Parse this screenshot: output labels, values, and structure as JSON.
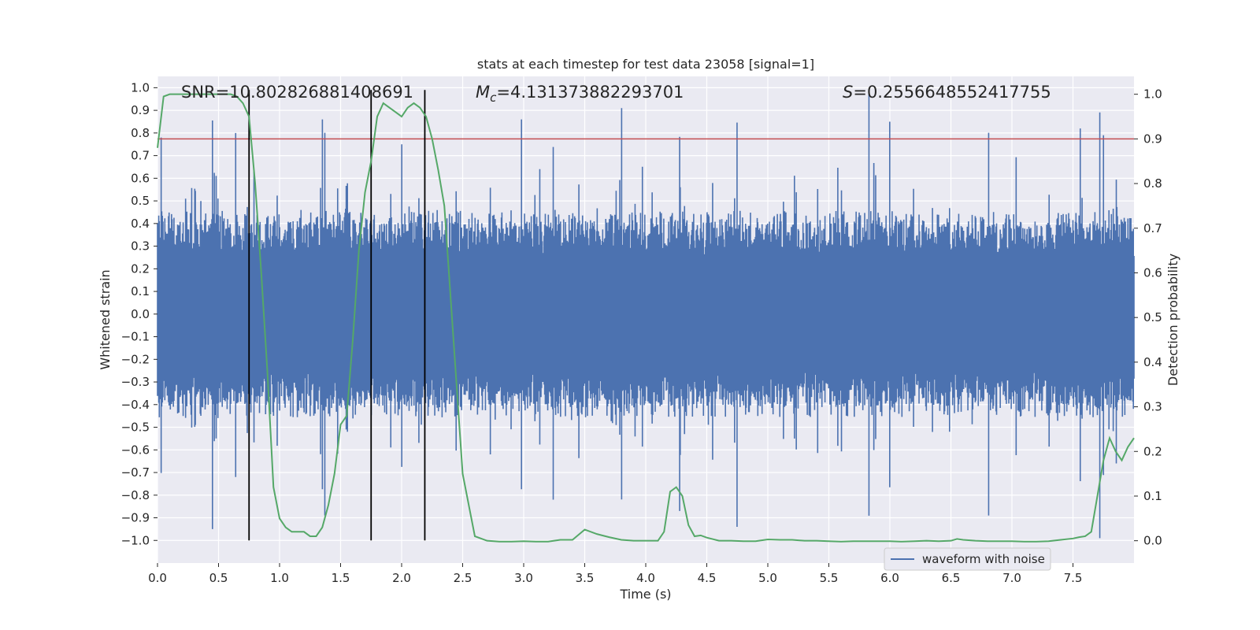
{
  "chart_data": {
    "type": "line",
    "title": "stats at each timestep for test data 23058 [signal=1]",
    "xlabel": "Time (s)",
    "ylabel_left": "Whitened strain",
    "ylabel_right": "Detection probability",
    "xlim": [
      0,
      8
    ],
    "ylim_left": [
      -1.1,
      1.05
    ],
    "ylim_right": [
      -0.05,
      1.04
    ],
    "x_ticks": [
      0.0,
      0.5,
      1.0,
      1.5,
      2.0,
      2.5,
      3.0,
      3.5,
      4.0,
      4.5,
      5.0,
      5.5,
      6.0,
      6.5,
      7.0,
      7.5
    ],
    "x_tick_labels": [
      "0.0",
      "0.5",
      "1.0",
      "1.5",
      "2.0",
      "2.5",
      "3.0",
      "3.5",
      "4.0",
      "4.5",
      "5.0",
      "5.5",
      "6.0",
      "6.5",
      "7.0",
      "7.5"
    ],
    "y_left_ticks": [
      -1.0,
      -0.9,
      -0.8,
      -0.7,
      -0.6,
      -0.5,
      -0.4,
      -0.3,
      -0.2,
      -0.1,
      0.0,
      0.1,
      0.2,
      0.3,
      0.4,
      0.5,
      0.6,
      0.7,
      0.8,
      0.9,
      1.0
    ],
    "y_left_tick_labels": [
      "−1.0",
      "−0.9",
      "−0.8",
      "−0.7",
      "−0.6",
      "−0.5",
      "−0.4",
      "−0.3",
      "−0.2",
      "−0.1",
      "0.0",
      "0.1",
      "0.2",
      "0.3",
      "0.4",
      "0.5",
      "0.6",
      "0.7",
      "0.8",
      "0.9",
      "1.0"
    ],
    "y_right_ticks": [
      0.0,
      0.1,
      0.2,
      0.3,
      0.4,
      0.5,
      0.6,
      0.7,
      0.8,
      0.9,
      1.0
    ],
    "y_right_tick_labels": [
      "0.0",
      "0.1",
      "0.2",
      "0.3",
      "0.4",
      "0.5",
      "0.6",
      "0.7",
      "0.8",
      "0.9",
      "1.0"
    ],
    "stats": {
      "snr_label": "SNR=10.802826881408691",
      "mc_symbol": "M",
      "mc_sub": "c",
      "mc_value": "=4.131373882293701",
      "s_symbol": "S",
      "s_value": "=0.2556648552417755"
    },
    "threshold": {
      "axis": "right",
      "value": 0.9,
      "color": "#c44e52"
    },
    "vertical_lines": [
      0.75,
      1.75,
      2.19
    ],
    "legend": {
      "label": "waveform with noise",
      "position": "lower-right"
    },
    "waveform": {
      "name": "waveform with noise",
      "color": "#4c72b0",
      "t_start": 0,
      "t_end": 8,
      "sample_count": 1600,
      "typical_envelope": 0.38,
      "peaks": [
        {
          "t": 0.03,
          "v": 0.78
        },
        {
          "t": 0.45,
          "v": -0.95
        },
        {
          "t": 0.64,
          "v": 0.8
        },
        {
          "t": 0.79,
          "v": 0.63
        },
        {
          "t": 1.35,
          "v": 0.86
        },
        {
          "t": 1.37,
          "v": -0.89
        },
        {
          "t": 2.0,
          "v": 0.75
        },
        {
          "t": 2.98,
          "v": 0.86
        },
        {
          "t": 3.24,
          "v": -0.82
        },
        {
          "t": 3.8,
          "v": 0.91
        },
        {
          "t": 4.75,
          "v": -0.94
        },
        {
          "t": 4.28,
          "v": -0.87
        },
        {
          "t": 5.83,
          "v": 0.99
        },
        {
          "t": 6.0,
          "v": 0.85
        },
        {
          "t": 6.81,
          "v": -0.89
        },
        {
          "t": 7.56,
          "v": 0.82
        },
        {
          "t": 7.72,
          "v": -0.99
        },
        {
          "t": 7.75,
          "v": 0.79
        }
      ]
    },
    "probability": {
      "name": "detection probability",
      "color": "#55a868",
      "x": [
        0.0,
        0.05,
        0.1,
        0.2,
        0.3,
        0.4,
        0.5,
        0.6,
        0.65,
        0.7,
        0.75,
        0.8,
        0.85,
        0.9,
        0.95,
        1.0,
        1.05,
        1.1,
        1.2,
        1.25,
        1.3,
        1.35,
        1.4,
        1.45,
        1.5,
        1.55,
        1.6,
        1.65,
        1.7,
        1.75,
        1.8,
        1.85,
        1.9,
        1.95,
        2.0,
        2.05,
        2.1,
        2.15,
        2.2,
        2.25,
        2.3,
        2.35,
        2.4,
        2.45,
        2.5,
        2.55,
        2.6,
        2.7,
        2.8,
        2.9,
        3.0,
        3.1,
        3.2,
        3.3,
        3.4,
        3.5,
        3.6,
        3.7,
        3.8,
        3.9,
        4.0,
        4.1,
        4.15,
        4.2,
        4.25,
        4.3,
        4.35,
        4.4,
        4.45,
        4.5,
        4.6,
        4.7,
        4.8,
        4.9,
        5.0,
        5.1,
        5.2,
        5.3,
        5.4,
        5.5,
        5.6,
        5.7,
        5.8,
        5.9,
        6.0,
        6.1,
        6.2,
        6.3,
        6.4,
        6.5,
        6.55,
        6.6,
        6.7,
        6.8,
        6.9,
        7.0,
        7.1,
        7.2,
        7.3,
        7.4,
        7.5,
        7.55,
        7.6,
        7.65,
        7.7,
        7.75,
        7.8,
        7.85,
        7.9,
        7.95,
        8.0
      ],
      "y": [
        0.88,
        0.995,
        1.0,
        1.0,
        1.0,
        1.0,
        1.0,
        1.0,
        0.995,
        0.98,
        0.95,
        0.8,
        0.6,
        0.38,
        0.12,
        0.05,
        0.03,
        0.02,
        0.02,
        0.01,
        0.01,
        0.03,
        0.08,
        0.15,
        0.26,
        0.28,
        0.45,
        0.65,
        0.78,
        0.85,
        0.95,
        0.98,
        0.97,
        0.96,
        0.95,
        0.97,
        0.98,
        0.97,
        0.95,
        0.9,
        0.83,
        0.75,
        0.55,
        0.35,
        0.15,
        0.08,
        0.01,
        0.0,
        -0.002,
        -0.002,
        -0.001,
        -0.002,
        -0.002,
        0.002,
        0.002,
        0.025,
        0.015,
        0.008,
        0.002,
        0.0,
        0.0,
        0.0,
        0.02,
        0.11,
        0.12,
        0.1,
        0.035,
        0.01,
        0.012,
        0.007,
        0.0,
        0.0,
        -0.001,
        -0.001,
        0.003,
        0.002,
        0.002,
        0.0,
        0.0,
        -0.001,
        -0.002,
        -0.001,
        -0.001,
        -0.001,
        -0.001,
        -0.002,
        -0.001,
        0.0,
        -0.001,
        0.0,
        0.004,
        0.002,
        0.0,
        -0.001,
        -0.001,
        -0.001,
        -0.002,
        -0.002,
        -0.001,
        0.002,
        0.005,
        0.008,
        0.01,
        0.02,
        0.1,
        0.18,
        0.23,
        0.2,
        0.18,
        0.21,
        0.23
      ]
    }
  }
}
